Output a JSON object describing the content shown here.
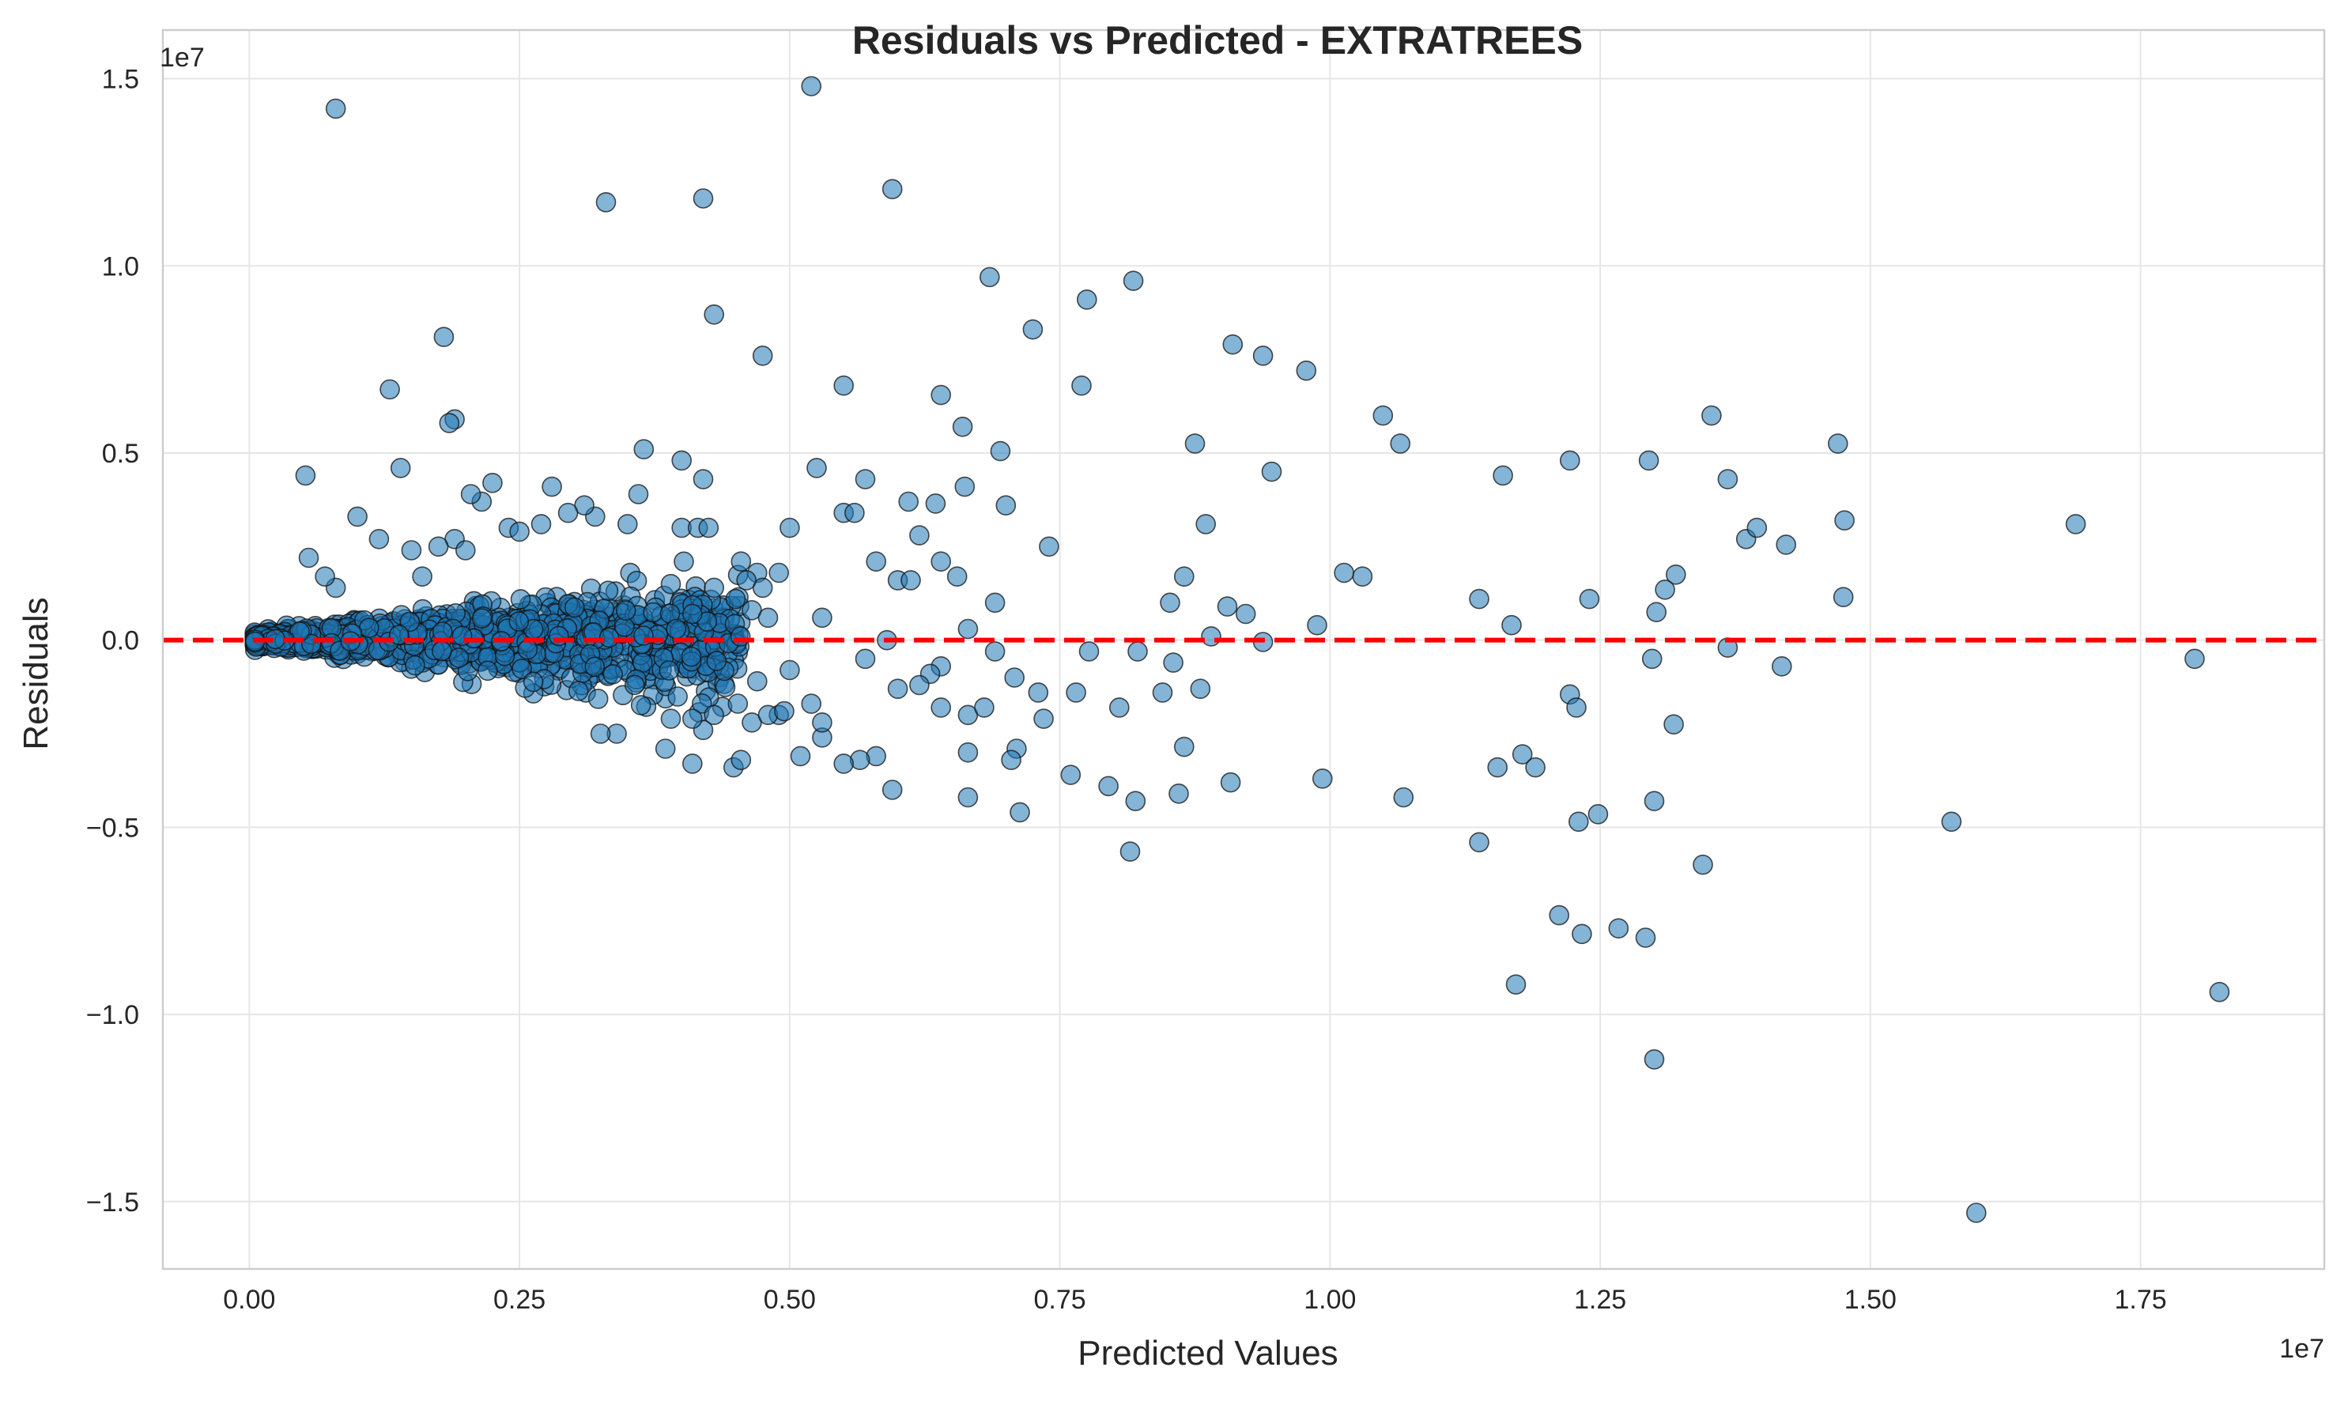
{
  "chart_data": {
    "type": "scatter",
    "title": "Residuals vs Predicted - EXTRATREES",
    "xlabel": "Predicted Values",
    "ylabel": "Residuals",
    "x_offset_label": "1e7",
    "y_offset_label": "1e7",
    "xlim": [
      -0.08,
      1.92
    ],
    "ylim": [
      -1.68,
      1.63
    ],
    "x_ticks": [
      {
        "value": 0.0,
        "label": "0.00"
      },
      {
        "value": 0.25,
        "label": "0.25"
      },
      {
        "value": 0.5,
        "label": "0.50"
      },
      {
        "value": 0.75,
        "label": "0.75"
      },
      {
        "value": 1.0,
        "label": "1.00"
      },
      {
        "value": 1.25,
        "label": "1.25"
      },
      {
        "value": 1.5,
        "label": "1.50"
      },
      {
        "value": 1.75,
        "label": "1.75"
      }
    ],
    "y_ticks": [
      {
        "value": 1.5,
        "label": "1.5"
      },
      {
        "value": 1.0,
        "label": "1.0"
      },
      {
        "value": 0.5,
        "label": "0.5"
      },
      {
        "value": 0.0,
        "label": "0.0"
      },
      {
        "value": -0.5,
        "label": "−0.5"
      },
      {
        "value": -1.0,
        "label": "−1.0"
      },
      {
        "value": -1.5,
        "label": "−1.5"
      }
    ],
    "grid": true,
    "reference_line": {
      "y": 0,
      "style": "dashed",
      "color": "#ff0000"
    },
    "colors": {
      "points": "#1f77b4",
      "edge": "#111111",
      "reference": "#ff0000",
      "grid": "#e6e6e6"
    },
    "points": [
      [
        0.08,
        1.42
      ],
      [
        0.52,
        1.48
      ],
      [
        0.33,
        1.17
      ],
      [
        0.42,
        1.18
      ],
      [
        0.595,
        1.205
      ],
      [
        0.685,
        0.97
      ],
      [
        0.775,
        0.91
      ],
      [
        0.818,
        0.96
      ],
      [
        0.43,
        0.87
      ],
      [
        0.725,
        0.83
      ],
      [
        0.18,
        0.81
      ],
      [
        0.475,
        0.76
      ],
      [
        0.91,
        0.79
      ],
      [
        0.938,
        0.76
      ],
      [
        0.978,
        0.72
      ],
      [
        0.13,
        0.67
      ],
      [
        0.55,
        0.68
      ],
      [
        0.77,
        0.68
      ],
      [
        0.19,
        0.59
      ],
      [
        0.185,
        0.58
      ],
      [
        0.64,
        0.655
      ],
      [
        0.66,
        0.57
      ],
      [
        0.695,
        0.505
      ],
      [
        1.049,
        0.6
      ],
      [
        1.065,
        0.525
      ],
      [
        1.16,
        0.44
      ],
      [
        1.222,
        0.48
      ],
      [
        1.295,
        0.48
      ],
      [
        1.353,
        0.6
      ],
      [
        1.368,
        0.43
      ],
      [
        1.47,
        0.525
      ],
      [
        1.69,
        0.31
      ],
      [
        0.875,
        0.525
      ],
      [
        0.946,
        0.45
      ],
      [
        0.365,
        0.51
      ],
      [
        0.4,
        0.48
      ],
      [
        0.42,
        0.43
      ],
      [
        0.525,
        0.46
      ],
      [
        0.57,
        0.43
      ],
      [
        0.61,
        0.37
      ],
      [
        0.635,
        0.365
      ],
      [
        0.662,
        0.41
      ],
      [
        0.7,
        0.36
      ],
      [
        0.74,
        0.25
      ],
      [
        0.885,
        0.31
      ],
      [
        0.052,
        0.44
      ],
      [
        0.14,
        0.46
      ],
      [
        0.225,
        0.42
      ],
      [
        0.28,
        0.41
      ],
      [
        0.32,
        0.33
      ],
      [
        0.24,
        0.3
      ],
      [
        0.36,
        0.39
      ],
      [
        0.1,
        0.33
      ],
      [
        0.055,
        0.22
      ],
      [
        0.58,
        0.21
      ],
      [
        0.62,
        0.28
      ],
      [
        0.64,
        0.21
      ],
      [
        0.655,
        0.17
      ],
      [
        0.55,
        0.34
      ],
      [
        0.56,
        0.34
      ],
      [
        1.385,
        0.27
      ],
      [
        1.395,
        0.3
      ],
      [
        1.422,
        0.255
      ],
      [
        1.476,
        0.32
      ],
      [
        1.475,
        0.115
      ],
      [
        1.013,
        0.18
      ],
      [
        1.03,
        0.17
      ],
      [
        1.138,
        0.11
      ],
      [
        1.24,
        0.11
      ],
      [
        1.32,
        0.175
      ],
      [
        1.31,
        0.135
      ],
      [
        1.302,
        0.075
      ],
      [
        0.865,
        0.17
      ],
      [
        0.905,
        0.09
      ],
      [
        0.922,
        0.07
      ],
      [
        0.852,
        0.1
      ],
      [
        0.89,
        0.01
      ],
      [
        0.938,
        -0.005
      ],
      [
        0.988,
        0.04
      ],
      [
        1.168,
        0.04
      ],
      [
        1.368,
        -0.02
      ],
      [
        1.298,
        -0.05
      ],
      [
        1.418,
        -0.07
      ],
      [
        1.8,
        -0.05
      ],
      [
        0.69,
        0.1
      ],
      [
        0.665,
        0.03
      ],
      [
        0.6,
        0.16
      ],
      [
        0.612,
        0.16
      ],
      [
        0.59,
        0.0
      ],
      [
        0.69,
        -0.03
      ],
      [
        0.777,
        -0.03
      ],
      [
        0.822,
        -0.03
      ],
      [
        0.708,
        -0.1
      ],
      [
        0.73,
        -0.14
      ],
      [
        0.765,
        -0.14
      ],
      [
        0.805,
        -0.18
      ],
      [
        0.845,
        -0.14
      ],
      [
        0.88,
        -0.13
      ],
      [
        0.855,
        -0.06
      ],
      [
        0.64,
        -0.07
      ],
      [
        0.63,
        -0.09
      ],
      [
        0.62,
        -0.12
      ],
      [
        0.6,
        -0.13
      ],
      [
        0.57,
        -0.05
      ],
      [
        0.53,
        0.06
      ],
      [
        0.665,
        -0.2
      ],
      [
        0.68,
        -0.18
      ],
      [
        0.735,
        -0.21
      ],
      [
        0.71,
        -0.29
      ],
      [
        0.705,
        -0.32
      ],
      [
        0.665,
        -0.3
      ],
      [
        0.64,
        -0.18
      ],
      [
        0.595,
        -0.4
      ],
      [
        0.58,
        -0.31
      ],
      [
        0.565,
        -0.32
      ],
      [
        0.55,
        -0.33
      ],
      [
        0.53,
        -0.26
      ],
      [
        0.53,
        -0.22
      ],
      [
        0.51,
        -0.31
      ],
      [
        0.52,
        -0.17
      ],
      [
        0.5,
        -0.08
      ],
      [
        0.49,
        -0.2
      ],
      [
        0.665,
        -0.42
      ],
      [
        0.713,
        -0.46
      ],
      [
        0.76,
        -0.36
      ],
      [
        0.795,
        -0.39
      ],
      [
        0.82,
        -0.43
      ],
      [
        0.86,
        -0.41
      ],
      [
        0.865,
        -0.285
      ],
      [
        0.908,
        -0.38
      ],
      [
        0.815,
        -0.565
      ],
      [
        0.993,
        -0.37
      ],
      [
        1.068,
        -0.42
      ],
      [
        1.138,
        -0.54
      ],
      [
        1.155,
        -0.34
      ],
      [
        1.178,
        -0.305
      ],
      [
        1.19,
        -0.34
      ],
      [
        1.222,
        -0.145
      ],
      [
        1.228,
        -0.18
      ],
      [
        1.23,
        -0.485
      ],
      [
        1.248,
        -0.465
      ],
      [
        1.3,
        -0.43
      ],
      [
        1.318,
        -0.225
      ],
      [
        1.345,
        -0.6
      ],
      [
        1.212,
        -0.735
      ],
      [
        1.233,
        -0.785
      ],
      [
        1.267,
        -0.77
      ],
      [
        1.292,
        -0.795
      ],
      [
        1.172,
        -0.92
      ],
      [
        1.3,
        -1.12
      ],
      [
        1.575,
        -0.485
      ],
      [
        1.598,
        -1.53
      ],
      [
        1.823,
        -0.94
      ],
      [
        0.448,
        -0.34
      ],
      [
        0.455,
        -0.32
      ],
      [
        0.41,
        -0.33
      ],
      [
        0.385,
        -0.29
      ],
      [
        0.42,
        -0.24
      ],
      [
        0.34,
        -0.25
      ],
      [
        0.325,
        -0.25
      ],
      [
        0.43,
        -0.2
      ],
      [
        0.39,
        -0.21
      ],
      [
        0.465,
        -0.22
      ],
      [
        0.48,
        -0.2
      ],
      [
        0.495,
        -0.19
      ],
      [
        0.41,
        -0.21
      ],
      [
        0.47,
        -0.11
      ],
      [
        0.395,
        0.03
      ],
      [
        0.41,
        0.07
      ],
      [
        0.43,
        0.14
      ],
      [
        0.455,
        0.21
      ],
      [
        0.47,
        0.18
      ],
      [
        0.475,
        0.14
      ],
      [
        0.49,
        0.18
      ],
      [
        0.5,
        0.3
      ],
      [
        0.46,
        0.16
      ],
      [
        0.4,
        0.3
      ],
      [
        0.415,
        0.3
      ],
      [
        0.425,
        0.3
      ],
      [
        0.45,
        0.11
      ],
      [
        0.465,
        0.08
      ],
      [
        0.48,
        0.06
      ],
      [
        0.39,
        0.15
      ],
      [
        0.35,
        0.31
      ],
      [
        0.31,
        0.36
      ],
      [
        0.295,
        0.34
      ],
      [
        0.27,
        0.31
      ],
      [
        0.25,
        0.29
      ],
      [
        0.215,
        0.37
      ],
      [
        0.205,
        0.39
      ],
      [
        0.19,
        0.27
      ],
      [
        0.175,
        0.25
      ],
      [
        0.15,
        0.24
      ],
      [
        0.12,
        0.27
      ],
      [
        0.2,
        0.24
      ],
      [
        0.16,
        0.17
      ],
      [
        0.08,
        0.14
      ],
      [
        0.07,
        0.17
      ]
    ]
  }
}
